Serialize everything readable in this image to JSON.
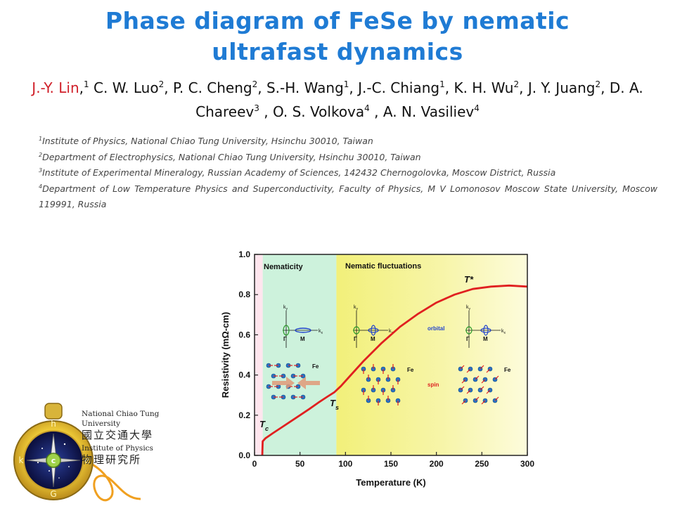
{
  "slide": {
    "title_line1": "Phase diagram of FeSe by nematic",
    "title_line2": "ultrafast dynamics",
    "authors": [
      {
        "name": "J.-Y. Lin",
        "sup": "1",
        "highlight": true
      },
      {
        "name": "C. W. Luo",
        "sup": "2"
      },
      {
        "name": "P. C. Cheng",
        "sup": "2"
      },
      {
        "name": "S.-H. Wang",
        "sup": "1"
      },
      {
        "name": "J.-C. Chiang",
        "sup": "1"
      },
      {
        "name": "K. H. Wu",
        "sup": "2"
      },
      {
        "name": "J. Y. Juang",
        "sup": "2"
      },
      {
        "name": "D. A. Chareev",
        "sup": "3"
      },
      {
        "name": "O. S. Volkova",
        "sup": "4"
      },
      {
        "name": "A. N. Vasiliev",
        "sup": "4"
      }
    ],
    "affiliations": [
      {
        "sup": "1",
        "text": "Institute of Physics, National Chiao Tung University, Hsinchu 30010, Taiwan"
      },
      {
        "sup": "2",
        "text": "Department of Electrophysics, National Chiao Tung University, Hsinchu 30010, Taiwan"
      },
      {
        "sup": "3",
        "text": "Institute of Experimental Mineralogy, Russian Academy of Sciences, 142432 Chernogolovka, Moscow District, Russia"
      },
      {
        "sup": "4",
        "text": "Department of Low Temperature Physics and Superconductivity, Faculty of Physics, M V Lomonosov Moscow State University, Moscow 119991, Russia"
      }
    ],
    "logo": {
      "line1": "National Chiao Tung University",
      "line2": "國立交通大學",
      "line3": "Institute of Physics",
      "line4": "物理研究所",
      "seal_letters": [
        "h",
        "k",
        "e",
        "G"
      ]
    }
  },
  "chart_data": {
    "type": "line",
    "xlabel": "Temperature (K)",
    "ylabel": "Resistivity (mΩ-cm)",
    "xlim": [
      0,
      300
    ],
    "ylim": [
      0,
      1.0
    ],
    "xticks": [
      0,
      50,
      100,
      150,
      200,
      250,
      300
    ],
    "yticks": [
      0.0,
      0.2,
      0.4,
      0.6,
      0.8,
      1.0
    ],
    "series": [
      {
        "color": "#e02020",
        "x": [
          8.5,
          9,
          12,
          20,
          30,
          40,
          50,
          60,
          70,
          80,
          88,
          95,
          105,
          120,
          140,
          160,
          180,
          200,
          220,
          240,
          260,
          280,
          300
        ],
        "y": [
          0.0,
          0.07,
          0.085,
          0.11,
          0.14,
          0.17,
          0.2,
          0.23,
          0.262,
          0.292,
          0.315,
          0.345,
          0.395,
          0.47,
          0.56,
          0.64,
          0.705,
          0.76,
          0.8,
          0.828,
          0.84,
          0.845,
          0.84
        ]
      }
    ],
    "regions": [
      {
        "label": "",
        "from": 0,
        "to": 9,
        "color": "#ffe6ee"
      },
      {
        "label": "Nematicity",
        "from": 9,
        "to": 90,
        "color": "#cdf2dc"
      },
      {
        "label": "Nematic fluctuations",
        "from": 90,
        "to": 300,
        "color": "#f7f5a8"
      }
    ],
    "annotations": {
      "tc": "T",
      "tc_sub": "c",
      "ts": "T",
      "ts_sub": "s",
      "tstar": "T*",
      "orbital": "orbital",
      "spin": "spin",
      "ky": "k",
      "ky_sub": "y",
      "kx": "k",
      "kx_sub": "x",
      "gamma": "Γ",
      "m": "M",
      "fe": "Fe"
    },
    "grid": false
  }
}
